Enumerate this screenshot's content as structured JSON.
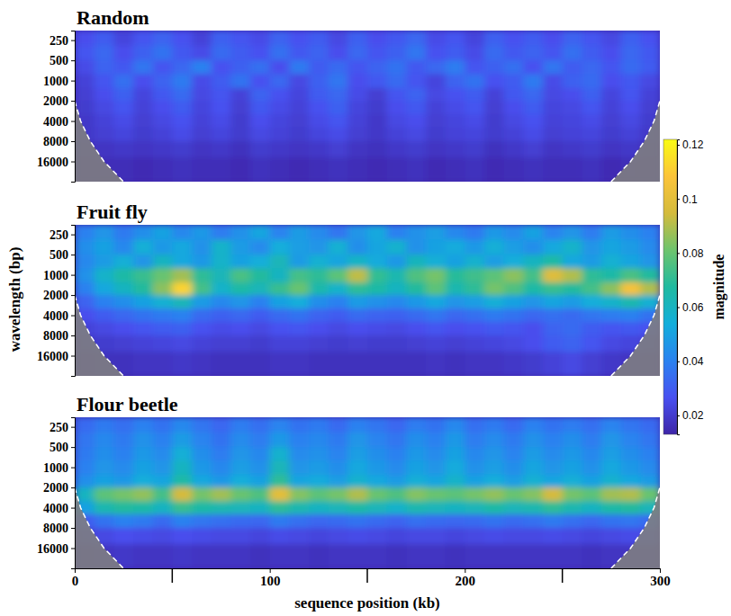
{
  "chart_data": {
    "type": "heatmap",
    "y_label": "wavelength (bp)",
    "x_label": "sequence position (kb)",
    "xlim": [
      0,
      300
    ],
    "xticks": [
      0,
      100,
      200,
      300
    ],
    "x_minor_ticks": [
      50,
      150,
      250
    ],
    "ylim": [
      180,
      32000
    ],
    "yticks": [
      250,
      500,
      1000,
      2000,
      4000,
      8000,
      16000
    ],
    "log": "y",
    "x_edges": [
      0,
      10,
      20,
      30,
      40,
      50,
      60,
      70,
      80,
      90,
      100,
      110,
      120,
      130,
      140,
      150,
      160,
      170,
      180,
      190,
      200,
      210,
      220,
      230,
      240,
      250,
      260,
      270,
      280,
      290,
      300
    ],
    "y_edges": [
      180,
      300,
      500,
      800,
      1300,
      2000,
      3200,
      5000,
      8000,
      14000,
      32000
    ],
    "colorbar": {
      "label": "magnitude",
      "range": [
        0.013,
        0.122
      ],
      "ticks": [
        0.02,
        0.04,
        0.06,
        0.08,
        0.1,
        0.12
      ]
    },
    "cone_of_influence": {
      "x": [
        0,
        3,
        8,
        15,
        25,
        275,
        285,
        292,
        297,
        300
      ],
      "y": [
        2000,
        4000,
        8000,
        16000,
        32000,
        32000,
        16000,
        8000,
        4000,
        2000
      ]
    },
    "panels": [
      {
        "title": "Random",
        "cells": [
          [
            0.026,
            0.03,
            0.023,
            0.028,
            0.032,
            0.027,
            0.022,
            0.031,
            0.028,
            0.025,
            0.032,
            0.027,
            0.03,
            0.024,
            0.031,
            0.026,
            0.029,
            0.033,
            0.025,
            0.028,
            0.023,
            0.031,
            0.027,
            0.03,
            0.026,
            0.032,
            0.028,
            0.024,
            0.031,
            0.027
          ],
          [
            0.028,
            0.033,
            0.026,
            0.031,
            0.036,
            0.029,
            0.025,
            0.034,
            0.03,
            0.027,
            0.035,
            0.029,
            0.032,
            0.026,
            0.033,
            0.028,
            0.031,
            0.037,
            0.027,
            0.03,
            0.025,
            0.034,
            0.029,
            0.032,
            0.028,
            0.035,
            0.03,
            0.026,
            0.033,
            0.029
          ],
          [
            0.025,
            0.032,
            0.029,
            0.037,
            0.028,
            0.033,
            0.04,
            0.027,
            0.031,
            0.035,
            0.026,
            0.038,
            0.03,
            0.034,
            0.028,
            0.032,
            0.036,
            0.029,
            0.033,
            0.039,
            0.028,
            0.031,
            0.035,
            0.027,
            0.037,
            0.03,
            0.033,
            0.028,
            0.034,
            0.03
          ],
          [
            0.022,
            0.028,
            0.035,
            0.026,
            0.032,
            0.038,
            0.025,
            0.03,
            0.036,
            0.027,
            0.033,
            0.024,
            0.031,
            0.037,
            0.026,
            0.029,
            0.034,
            0.028,
            0.023,
            0.032,
            0.036,
            0.027,
            0.03,
            0.038,
            0.025,
            0.031,
            0.034,
            0.026,
            0.029,
            0.024
          ],
          [
            0.021,
            0.026,
            0.031,
            0.023,
            0.029,
            0.034,
            0.024,
            0.028,
            0.022,
            0.032,
            0.027,
            0.023,
            0.03,
            0.033,
            0.025,
            0.021,
            0.028,
            0.032,
            0.024,
            0.027,
            0.03,
            0.022,
            0.029,
            0.033,
            0.024,
            0.026,
            0.031,
            0.023,
            0.028,
            0.022
          ],
          [
            0.02,
            0.024,
            0.028,
            0.022,
            0.026,
            0.03,
            0.023,
            0.027,
            0.021,
            0.029,
            0.025,
            0.022,
            0.027,
            0.031,
            0.023,
            0.02,
            0.026,
            0.029,
            0.022,
            0.025,
            0.028,
            0.021,
            0.026,
            0.03,
            0.023,
            0.024,
            0.028,
            0.022,
            0.026,
            0.021
          ],
          [
            0.019,
            0.022,
            0.025,
            0.021,
            0.024,
            0.027,
            0.022,
            0.025,
            0.02,
            0.026,
            0.023,
            0.021,
            0.025,
            0.028,
            0.022,
            0.019,
            0.024,
            0.026,
            0.021,
            0.023,
            0.025,
            0.02,
            0.024,
            0.027,
            0.022,
            0.023,
            0.025,
            0.021,
            0.024,
            0.02
          ],
          [
            0.019,
            0.021,
            0.023,
            0.02,
            0.022,
            0.025,
            0.021,
            0.023,
            0.02,
            0.024,
            0.022,
            0.02,
            0.023,
            0.025,
            0.021,
            0.019,
            0.022,
            0.024,
            0.02,
            0.022,
            0.023,
            0.02,
            0.022,
            0.025,
            0.021,
            0.022,
            0.023,
            0.02,
            0.022,
            0.019
          ],
          [
            0.017,
            0.018,
            0.019,
            0.018,
            0.019,
            0.02,
            0.018,
            0.019,
            0.017,
            0.02,
            0.019,
            0.018,
            0.019,
            0.021,
            0.018,
            0.017,
            0.019,
            0.02,
            0.018,
            0.019,
            0.02,
            0.017,
            0.019,
            0.021,
            0.018,
            0.019,
            0.02,
            0.018,
            0.019,
            0.017
          ],
          [
            0.015,
            0.016,
            0.016,
            0.015,
            0.016,
            0.017,
            0.016,
            0.016,
            0.015,
            0.017,
            0.016,
            0.015,
            0.016,
            0.017,
            0.016,
            0.015,
            0.016,
            0.017,
            0.015,
            0.016,
            0.017,
            0.015,
            0.016,
            0.017,
            0.016,
            0.016,
            0.017,
            0.015,
            0.016,
            0.015
          ]
        ]
      },
      {
        "title": "Fruit fly",
        "cells": [
          [
            0.04,
            0.046,
            0.038,
            0.044,
            0.05,
            0.042,
            0.047,
            0.039,
            0.045,
            0.051,
            0.041,
            0.048,
            0.043,
            0.037,
            0.046,
            0.052,
            0.04,
            0.045,
            0.049,
            0.042,
            0.038,
            0.047,
            0.043,
            0.05,
            0.041,
            0.046,
            0.039,
            0.048,
            0.044,
            0.04
          ],
          [
            0.044,
            0.05,
            0.042,
            0.055,
            0.047,
            0.052,
            0.045,
            0.058,
            0.048,
            0.043,
            0.054,
            0.049,
            0.046,
            0.056,
            0.044,
            0.051,
            0.057,
            0.045,
            0.05,
            0.053,
            0.047,
            0.055,
            0.049,
            0.044,
            0.052,
            0.058,
            0.046,
            0.051,
            0.048,
            0.043
          ],
          [
            0.042,
            0.048,
            0.055,
            0.046,
            0.06,
            0.052,
            0.047,
            0.058,
            0.05,
            0.054,
            0.062,
            0.048,
            0.056,
            0.051,
            0.059,
            0.053,
            0.047,
            0.061,
            0.055,
            0.05,
            0.057,
            0.049,
            0.054,
            0.06,
            0.066,
            0.052,
            0.048,
            0.056,
            0.051,
            0.046
          ],
          [
            0.045,
            0.058,
            0.066,
            0.072,
            0.08,
            0.088,
            0.07,
            0.062,
            0.075,
            0.068,
            0.06,
            0.074,
            0.07,
            0.078,
            0.092,
            0.071,
            0.064,
            0.076,
            0.082,
            0.069,
            0.073,
            0.078,
            0.085,
            0.074,
            0.098,
            0.09,
            0.07,
            0.066,
            0.075,
            0.068
          ],
          [
            0.04,
            0.052,
            0.06,
            0.068,
            0.085,
            0.112,
            0.074,
            0.058,
            0.066,
            0.062,
            0.072,
            0.08,
            0.065,
            0.058,
            0.07,
            0.066,
            0.06,
            0.068,
            0.078,
            0.064,
            0.07,
            0.082,
            0.076,
            0.066,
            0.072,
            0.068,
            0.074,
            0.085,
            0.106,
            0.09
          ],
          [
            0.032,
            0.04,
            0.044,
            0.05,
            0.056,
            0.062,
            0.048,
            0.042,
            0.046,
            0.04,
            0.05,
            0.054,
            0.044,
            0.04,
            0.048,
            0.045,
            0.042,
            0.047,
            0.052,
            0.046,
            0.049,
            0.055,
            0.05,
            0.046,
            0.051,
            0.048,
            0.054,
            0.058,
            0.064,
            0.056
          ],
          [
            0.026,
            0.03,
            0.033,
            0.036,
            0.038,
            0.04,
            0.034,
            0.031,
            0.033,
            0.03,
            0.034,
            0.036,
            0.032,
            0.03,
            0.034,
            0.032,
            0.031,
            0.034,
            0.037,
            0.033,
            0.035,
            0.038,
            0.036,
            0.033,
            0.035,
            0.034,
            0.037,
            0.039,
            0.04,
            0.036
          ],
          [
            0.022,
            0.024,
            0.026,
            0.028,
            0.03,
            0.031,
            0.027,
            0.025,
            0.026,
            0.024,
            0.027,
            0.028,
            0.026,
            0.024,
            0.026,
            0.025,
            0.024,
            0.026,
            0.028,
            0.026,
            0.027,
            0.029,
            0.028,
            0.026,
            0.032,
            0.034,
            0.03,
            0.028,
            0.029,
            0.027
          ],
          [
            0.019,
            0.02,
            0.021,
            0.022,
            0.023,
            0.024,
            0.022,
            0.021,
            0.021,
            0.02,
            0.022,
            0.022,
            0.021,
            0.02,
            0.021,
            0.02,
            0.02,
            0.021,
            0.022,
            0.021,
            0.022,
            0.023,
            0.024,
            0.026,
            0.03,
            0.032,
            0.028,
            0.024,
            0.023,
            0.021
          ],
          [
            0.016,
            0.017,
            0.017,
            0.018,
            0.018,
            0.019,
            0.018,
            0.017,
            0.017,
            0.017,
            0.018,
            0.018,
            0.017,
            0.017,
            0.017,
            0.017,
            0.017,
            0.017,
            0.018,
            0.017,
            0.018,
            0.018,
            0.019,
            0.02,
            0.022,
            0.024,
            0.021,
            0.019,
            0.018,
            0.017
          ]
        ]
      },
      {
        "title": "Flour beetle",
        "cells": [
          [
            0.034,
            0.038,
            0.035,
            0.04,
            0.036,
            0.042,
            0.037,
            0.033,
            0.039,
            0.035,
            0.041,
            0.036,
            0.038,
            0.034,
            0.04,
            0.037,
            0.033,
            0.039,
            0.036,
            0.042,
            0.035,
            0.038,
            0.034,
            0.04,
            0.036,
            0.039,
            0.035,
            0.041,
            0.037,
            0.034
          ],
          [
            0.037,
            0.042,
            0.038,
            0.045,
            0.04,
            0.048,
            0.041,
            0.036,
            0.043,
            0.039,
            0.047,
            0.04,
            0.042,
            0.038,
            0.046,
            0.041,
            0.037,
            0.044,
            0.04,
            0.047,
            0.039,
            0.043,
            0.038,
            0.045,
            0.04,
            0.044,
            0.039,
            0.046,
            0.041,
            0.037
          ],
          [
            0.038,
            0.044,
            0.04,
            0.047,
            0.043,
            0.055,
            0.044,
            0.039,
            0.046,
            0.042,
            0.057,
            0.043,
            0.045,
            0.041,
            0.049,
            0.044,
            0.04,
            0.047,
            0.043,
            0.05,
            0.042,
            0.046,
            0.041,
            0.048,
            0.043,
            0.047,
            0.042,
            0.049,
            0.044,
            0.04
          ],
          [
            0.04,
            0.046,
            0.043,
            0.05,
            0.046,
            0.06,
            0.047,
            0.042,
            0.049,
            0.045,
            0.062,
            0.046,
            0.048,
            0.044,
            0.052,
            0.047,
            0.043,
            0.05,
            0.046,
            0.053,
            0.045,
            0.049,
            0.044,
            0.051,
            0.046,
            0.05,
            0.045,
            0.052,
            0.047,
            0.043
          ],
          [
            0.044,
            0.05,
            0.047,
            0.054,
            0.051,
            0.066,
            0.052,
            0.047,
            0.054,
            0.05,
            0.07,
            0.051,
            0.053,
            0.049,
            0.057,
            0.052,
            0.048,
            0.055,
            0.051,
            0.058,
            0.05,
            0.054,
            0.049,
            0.056,
            0.051,
            0.055,
            0.05,
            0.057,
            0.052,
            0.048
          ],
          [
            0.06,
            0.078,
            0.082,
            0.086,
            0.074,
            0.095,
            0.082,
            0.088,
            0.08,
            0.076,
            0.1,
            0.084,
            0.078,
            0.082,
            0.09,
            0.08,
            0.076,
            0.084,
            0.08,
            0.078,
            0.082,
            0.086,
            0.08,
            0.084,
            0.095,
            0.082,
            0.078,
            0.088,
            0.09,
            0.08
          ],
          [
            0.05,
            0.064,
            0.068,
            0.066,
            0.06,
            0.072,
            0.066,
            0.064,
            0.062,
            0.06,
            0.07,
            0.064,
            0.06,
            0.062,
            0.066,
            0.062,
            0.058,
            0.064,
            0.062,
            0.06,
            0.062,
            0.066,
            0.062,
            0.064,
            0.07,
            0.064,
            0.06,
            0.066,
            0.068,
            0.062
          ],
          [
            0.03,
            0.036,
            0.04,
            0.038,
            0.034,
            0.04,
            0.037,
            0.035,
            0.034,
            0.033,
            0.038,
            0.035,
            0.033,
            0.034,
            0.036,
            0.034,
            0.032,
            0.035,
            0.034,
            0.033,
            0.034,
            0.036,
            0.034,
            0.035,
            0.038,
            0.035,
            0.033,
            0.036,
            0.037,
            0.034
          ],
          [
            0.022,
            0.024,
            0.026,
            0.025,
            0.024,
            0.026,
            0.025,
            0.024,
            0.024,
            0.023,
            0.025,
            0.024,
            0.023,
            0.024,
            0.025,
            0.024,
            0.023,
            0.024,
            0.024,
            0.023,
            0.024,
            0.025,
            0.024,
            0.024,
            0.025,
            0.024,
            0.023,
            0.024,
            0.025,
            0.024
          ],
          [
            0.017,
            0.018,
            0.019,
            0.018,
            0.018,
            0.019,
            0.018,
            0.018,
            0.018,
            0.017,
            0.018,
            0.018,
            0.017,
            0.018,
            0.018,
            0.018,
            0.017,
            0.018,
            0.018,
            0.017,
            0.018,
            0.018,
            0.018,
            0.018,
            0.018,
            0.018,
            0.017,
            0.018,
            0.018,
            0.018
          ]
        ]
      }
    ]
  }
}
